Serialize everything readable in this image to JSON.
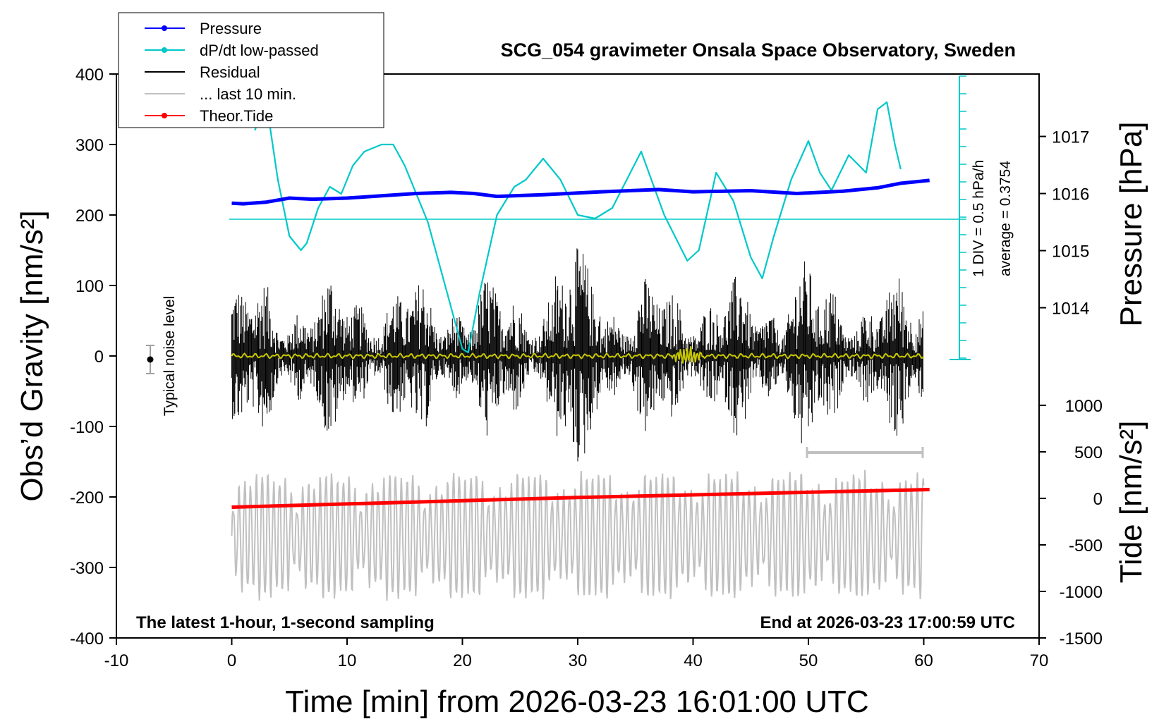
{
  "chart_data": {
    "type": "line",
    "title": "SCG_054 gravimeter Onsala Space Observatory, Sweden",
    "xlabel": "Time [min] from 2026-03-23 16:01:00 UTC",
    "ylabel_left": "Obs’d Gravity [nm/s²]",
    "ylabel_right_top": "Pressure [hPa]",
    "ylabel_right_bottom": "Tide [nm/s²]",
    "xlim": [
      -10,
      70
    ],
    "ylim_left": [
      -400,
      400
    ],
    "ylim_pressure": [
      1013,
      1018
    ],
    "ylim_tide": [
      -1500,
      1500
    ],
    "x_ticks": [
      "-10",
      "0",
      "10",
      "20",
      "30",
      "40",
      "50",
      "60",
      "70"
    ],
    "y_left_ticks": [
      "400",
      "300",
      "200",
      "100",
      "0",
      "-100",
      "-200",
      "-300",
      "-400"
    ],
    "y_pressure_ticks": [
      "1017",
      "1016",
      "1015",
      "1014"
    ],
    "y_tide_ticks": [
      "1000",
      "500",
      "0",
      "-500",
      "-1000",
      "-1500"
    ],
    "legend_placement": "top-left",
    "legend": [
      {
        "name": "Pressure",
        "color": "#0000ff",
        "marker": true
      },
      {
        "name": "dP/dt low-passed",
        "color": "#00c8c8",
        "marker": true
      },
      {
        "name": "Residual",
        "color": "#000000",
        "marker": false
      },
      {
        "name": "... last 10 min.",
        "color": "#c0c0c0",
        "marker": false
      },
      {
        "name": "Theor.Tide",
        "color": "#ff0000",
        "marker": true
      }
    ],
    "annotations": {
      "bottom_left": "The latest 1-hour, 1-second sampling",
      "bottom_right": "End at 2026-03-23 17:00:59 UTC",
      "noise": "Typical noise level",
      "scale_div": "1 DIV = 0.5 hPa/h",
      "scale_avg": "average = 0.3754"
    },
    "series": [
      {
        "name": "Pressure",
        "unit": "hPa",
        "x": [
          0,
          1,
          3,
          5,
          7,
          10,
          13,
          16,
          19,
          21,
          23,
          27,
          32,
          37,
          40,
          45,
          49,
          53,
          56,
          58,
          60.5
        ],
        "y": [
          1015.83,
          1015.82,
          1015.85,
          1015.92,
          1015.9,
          1015.92,
          1015.96,
          1016.0,
          1016.02,
          1016.0,
          1015.95,
          1015.98,
          1016.03,
          1016.07,
          1016.03,
          1016.05,
          1016.0,
          1016.04,
          1016.1,
          1016.18,
          1016.23
        ]
      },
      {
        "name": "dP/dt low-passed",
        "unit": "nm/s² plot scale",
        "x": [
          2,
          3,
          4,
          5,
          6,
          6.5,
          7.5,
          8.5,
          9.5,
          10.5,
          11.5,
          13,
          14,
          15,
          17,
          18.5,
          20,
          20.5,
          21.5,
          23,
          24.5,
          25.5,
          27,
          28.5,
          30,
          31.5,
          33,
          35.5,
          37.5,
          39.5,
          40.5,
          42,
          43.5,
          45,
          46,
          47,
          48.5,
          50,
          51,
          52,
          53.5,
          55,
          56,
          56.8,
          57.5,
          58
        ],
        "y": [
          320,
          360,
          250,
          170,
          150,
          160,
          210,
          240,
          230,
          270,
          290,
          300,
          300,
          270,
          190,
          100,
          10,
          5,
          90,
          200,
          240,
          250,
          280,
          250,
          200,
          195,
          210,
          290,
          200,
          135,
          150,
          260,
          220,
          140,
          110,
          170,
          250,
          305,
          260,
          235,
          285,
          260,
          350,
          360,
          300,
          265
        ]
      },
      {
        "name": "Residual",
        "unit": "nm/s²",
        "x_range": [
          0,
          60
        ],
        "amplitude_range": [
          -170,
          160
        ]
      },
      {
        "name": "... last 10 min.",
        "unit": "nm/s² plot scale",
        "x_range": [
          0,
          60
        ],
        "y_range": [
          -360,
          -150
        ]
      },
      {
        "name": "Theor.Tide",
        "unit": "nm/s²",
        "x": [
          0,
          30,
          60.5
        ],
        "y": [
          -95,
          10,
          95
        ]
      }
    ]
  }
}
